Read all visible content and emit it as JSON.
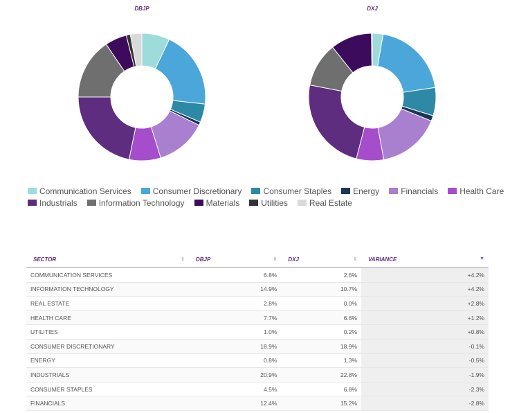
{
  "chart_data": [
    {
      "type": "pie",
      "title": "DBJP",
      "categories": [
        "Communication Services",
        "Consumer Discretionary",
        "Consumer Staples",
        "Energy",
        "Financials",
        "Health Care",
        "Industrials",
        "Information Technology",
        "Materials",
        "Utilities",
        "Real Estate"
      ],
      "values": [
        6.8,
        18.9,
        4.5,
        0.8,
        12.4,
        7.7,
        20.9,
        14.9,
        5.3,
        1.0,
        2.8
      ],
      "colors": [
        "#9edbdb",
        "#4ba7d9",
        "#2e89a6",
        "#1d3557",
        "#a97fd0",
        "#a54dcb",
        "#5e2d7f",
        "#6f6f6f",
        "#3c0b5b",
        "#333333",
        "#d9d9d9"
      ]
    },
    {
      "type": "pie",
      "title": "DXJ",
      "categories": [
        "Communication Services",
        "Consumer Discretionary",
        "Consumer Staples",
        "Energy",
        "Financials",
        "Health Care",
        "Industrials",
        "Information Technology",
        "Materials",
        "Utilities",
        "Real Estate"
      ],
      "values": [
        2.6,
        18.9,
        6.8,
        1.3,
        15.2,
        6.6,
        22.8,
        10.7,
        10.0,
        0.2,
        0.0
      ],
      "colors": [
        "#9edbdb",
        "#4ba7d9",
        "#2e89a6",
        "#1d3557",
        "#a97fd0",
        "#a54dcb",
        "#5e2d7f",
        "#6f6f6f",
        "#3c0b5b",
        "#333333",
        "#d9d9d9"
      ]
    }
  ],
  "table": {
    "header": [
      "SECTOR",
      "DBJP",
      "DXJ",
      "VARIANCE"
    ],
    "rows": [
      [
        "COMMUNICATION SERVICES",
        "6.8%",
        "2.6%",
        "+4.2%"
      ],
      [
        "INFORMATION TECHNOLOGY",
        "14.9%",
        "10.7%",
        "+4.2%"
      ],
      [
        "REAL ESTATE",
        "2.8%",
        "0.0%",
        "+2.8%"
      ],
      [
        "HEALTH CARE",
        "7.7%",
        "6.6%",
        "+1.2%"
      ],
      [
        "UTILITIES",
        "1.0%",
        "0.2%",
        "+0.8%"
      ],
      [
        "CONSUMER DISCRETIONARY",
        "18.9%",
        "18.9%",
        "-0.1%"
      ],
      [
        "ENERGY",
        "0.8%",
        "1.3%",
        "-0.5%"
      ],
      [
        "INDUSTRIALS",
        "20.9%",
        "22.8%",
        "-1.9%"
      ],
      [
        "CONSUMER STAPLES",
        "4.5%",
        "6.8%",
        "-2.3%"
      ],
      [
        "FINANCIALS",
        "12.4%",
        "15.2%",
        "-2.8%"
      ]
    ]
  }
}
